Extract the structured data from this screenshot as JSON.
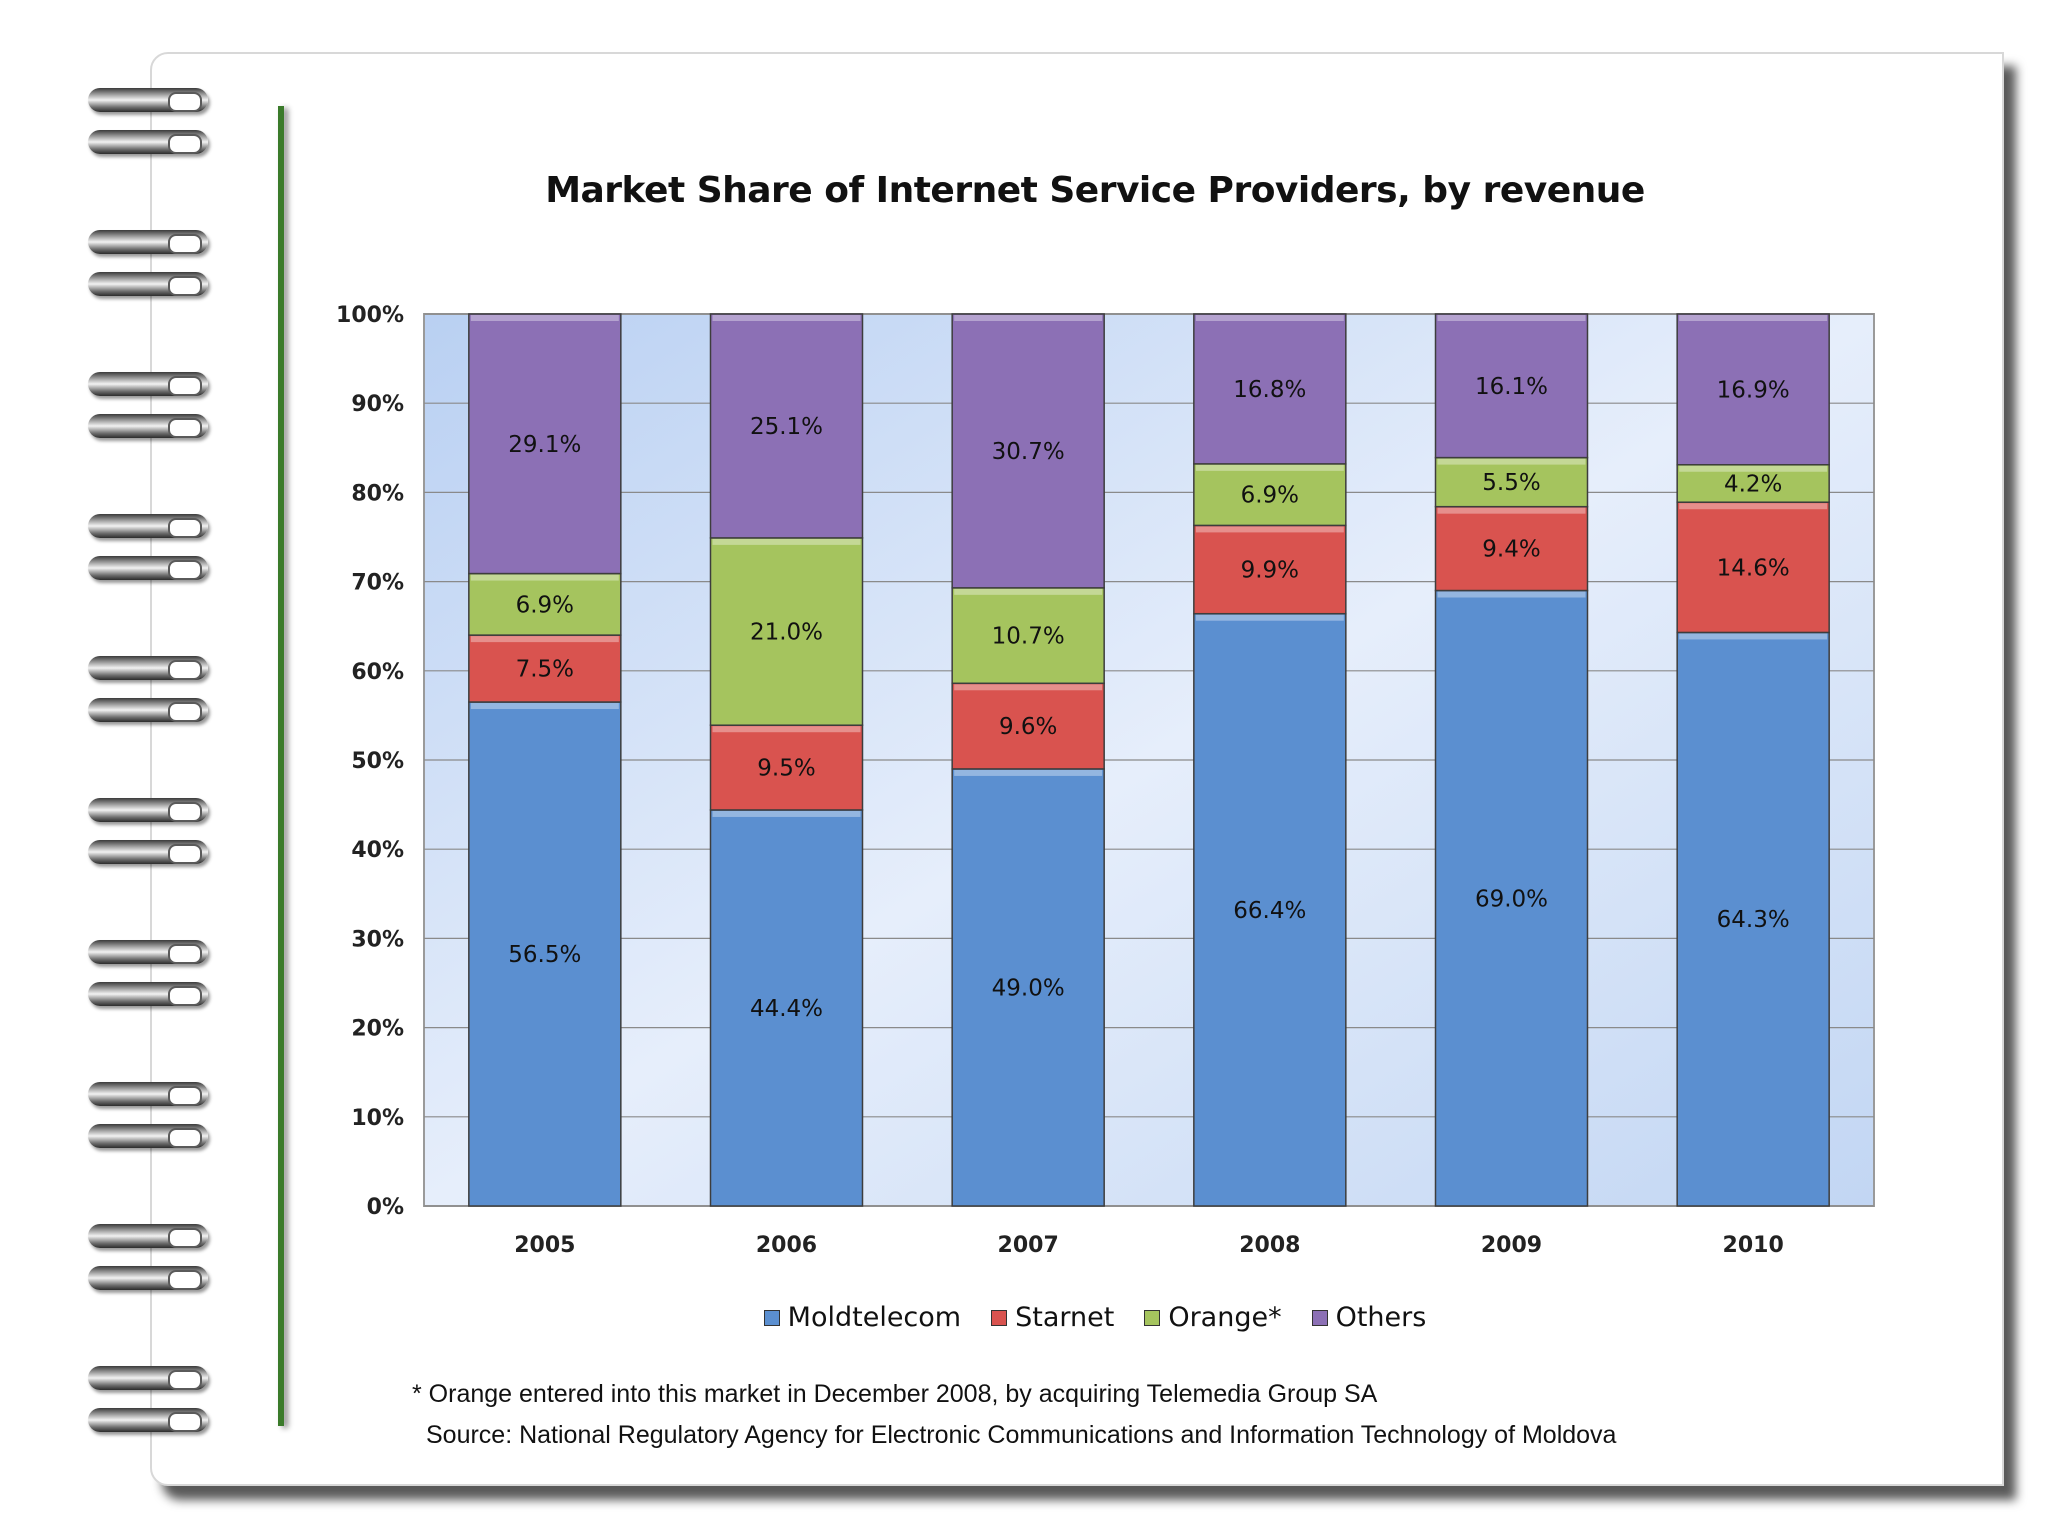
{
  "chart_data": {
    "type": "bar",
    "stacked": true,
    "title": "Market Share of Internet Service Providers, by revenue",
    "categories": [
      "2005",
      "2006",
      "2007",
      "2008",
      "2009",
      "2010"
    ],
    "series": [
      {
        "name": "Moldtelecom",
        "values": [
          56.5,
          44.4,
          49.0,
          66.4,
          69.0,
          64.3
        ],
        "labels": [
          "56.5%",
          "44.4%",
          "49.0%",
          "66.4%",
          "69.0%",
          "64.3%"
        ],
        "color": "#5b8fd0"
      },
      {
        "name": "Starnet",
        "values": [
          7.5,
          9.5,
          9.6,
          9.9,
          9.4,
          14.6
        ],
        "labels": [
          "7.5%",
          "9.5%",
          "9.6%",
          "9.9%",
          "9.4%",
          "14.6%"
        ],
        "color": "#d9534f"
      },
      {
        "name": "Orange*",
        "values": [
          6.9,
          21.0,
          10.7,
          6.9,
          5.5,
          4.2
        ],
        "labels": [
          "6.9%",
          "21.0%",
          "10.7%",
          "6.9%",
          "5.5%",
          "4.2%"
        ],
        "color": "#a5c45e"
      },
      {
        "name": "Others",
        "values": [
          29.1,
          25.1,
          30.7,
          16.8,
          16.1,
          16.9
        ],
        "labels": [
          "29.1%",
          "25.1%",
          "30.7%",
          "16.8%",
          "16.1%",
          "16.9%"
        ],
        "color": "#8c70b5"
      }
    ],
    "yticks": [
      "0%",
      "10%",
      "20%",
      "30%",
      "40%",
      "50%",
      "60%",
      "70%",
      "80%",
      "90%",
      "100%"
    ],
    "ylim": [
      0,
      100
    ],
    "xlabel": "",
    "ylabel": "",
    "grid": true,
    "legend_position": "bottom"
  },
  "notes": {
    "footnote": "* Orange entered into this market in December 2008, by acquiring Telemedia Group SA",
    "source": "Source: National Regulatory Agency for Electronic Communications and Information Technology of Moldova"
  },
  "colors": {
    "plot_background": "#cfe0f7",
    "gridline": "#8a8a8a",
    "margin_line": "#3a7a2a"
  }
}
